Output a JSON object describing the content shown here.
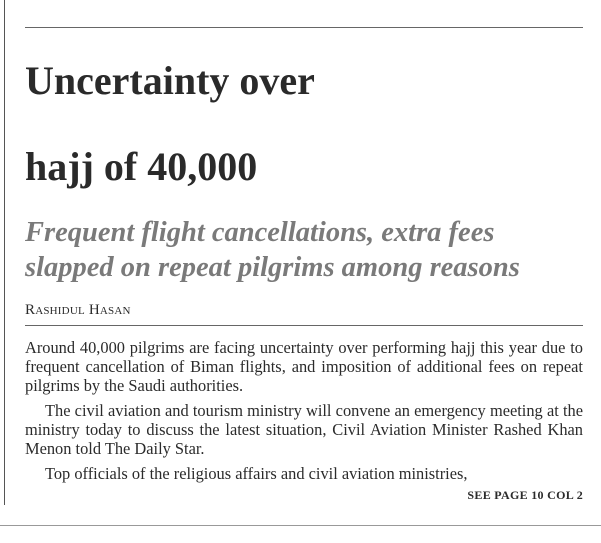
{
  "article": {
    "headline": [
      "Uncertainty over",
      "hajj of 40,000"
    ],
    "subhead": "Frequent flight cancellations, extra fees slapped on repeat pilgrims among reasons",
    "byline": "Rashidul Hasan",
    "paragraphs": [
      "Around 40,000 pilgrims are facing uncertainty over performing hajj this year due to frequent cancellation of Biman flights, and imposition of additional fees on repeat pilgrims by the Saudi authorities.",
      "The civil aviation and tourism ministry will convene an emergency meeting at the ministry today to discuss the latest situation, Civil Aviation Minister Rashed Khan Menon told The Daily Star.",
      "Top officials of the religious affairs and civil aviation ministries,"
    ],
    "jump": "SEE PAGE 10 COL 2"
  }
}
